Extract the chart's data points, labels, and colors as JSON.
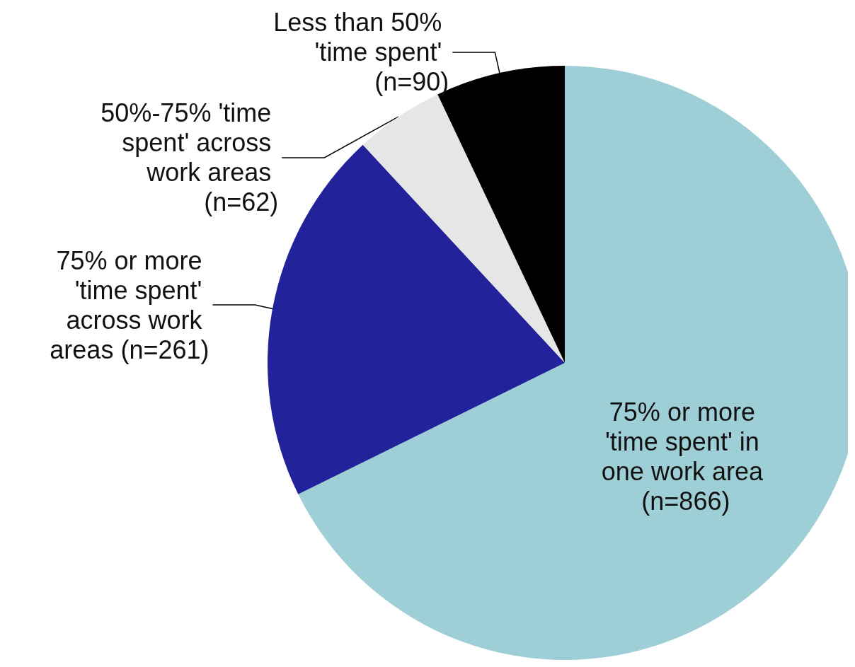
{
  "chart_data": {
    "type": "pie",
    "categories": [
      "75% or more 'time spent' in one work area (n=866)",
      "75% or more 'time spent' across work areas (n=261)",
      "50%-75% 'time spent' across work areas (n=62)",
      "Less than 50% 'time spent' (n=90)"
    ],
    "values": [
      866,
      261,
      62,
      90
    ],
    "colors": [
      "#9fcfd6",
      "#22229a",
      "#e6e6e6",
      "#000000"
    ],
    "legend": false
  }
}
